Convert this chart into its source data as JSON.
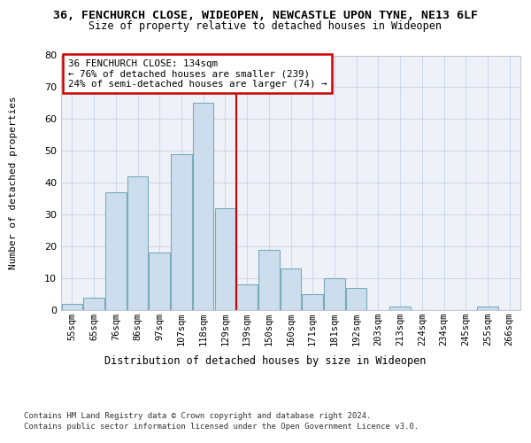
{
  "title1": "36, FENCHURCH CLOSE, WIDEOPEN, NEWCASTLE UPON TYNE, NE13 6LF",
  "title2": "Size of property relative to detached houses in Wideopen",
  "xlabel": "Distribution of detached houses by size in Wideopen",
  "ylabel": "Number of detached properties",
  "bar_labels": [
    "55sqm",
    "65sqm",
    "76sqm",
    "86sqm",
    "97sqm",
    "107sqm",
    "118sqm",
    "129sqm",
    "139sqm",
    "150sqm",
    "160sqm",
    "171sqm",
    "181sqm",
    "192sqm",
    "203sqm",
    "213sqm",
    "224sqm",
    "234sqm",
    "245sqm",
    "255sqm",
    "266sqm"
  ],
  "bar_values": [
    2,
    4,
    37,
    42,
    18,
    49,
    65,
    32,
    8,
    19,
    13,
    5,
    10,
    7,
    0,
    1,
    0,
    0,
    0,
    1,
    0
  ],
  "bar_color": "#ccdded",
  "bar_edge_color": "#7aaabb",
  "vline_index": 7.5,
  "annotation_title": "36 FENCHURCH CLOSE: 134sqm",
  "annotation_line1": "← 76% of detached houses are smaller (239)",
  "annotation_line2": "24% of semi-detached houses are larger (74) →",
  "annotation_box_color": "#ffffff",
  "annotation_box_edge": "#cc0000",
  "vline_color": "#cc0000",
  "ylim": [
    0,
    80
  ],
  "yticks": [
    0,
    10,
    20,
    30,
    40,
    50,
    60,
    70,
    80
  ],
  "footer1": "Contains HM Land Registry data © Crown copyright and database right 2024.",
  "footer2": "Contains public sector information licensed under the Open Government Licence v3.0.",
  "bg_color": "#ffffff",
  "plot_bg_color": "#eef2f8",
  "grid_color": "#d0d8e8"
}
